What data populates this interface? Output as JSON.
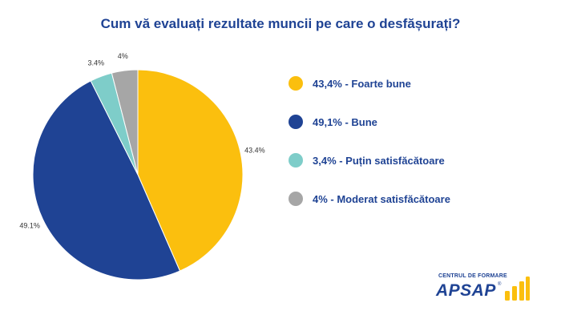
{
  "title": "Cum vă evaluați rezultate muncii pe care o desfășurați?",
  "chart_data": {
    "type": "pie",
    "slices": [
      {
        "label": "43.4%",
        "value": 43.4,
        "color": "#fbbf0e"
      },
      {
        "label": "49.1%",
        "value": 49.1,
        "color": "#1f4394"
      },
      {
        "label": "3.4%",
        "value": 3.4,
        "color": "#7ecdc9"
      },
      {
        "label": "4%",
        "value": 4.0,
        "color": "#a6a6a6"
      }
    ]
  },
  "legend": {
    "items": [
      {
        "text": "43,4% - Foarte bune",
        "color": "#fbbf0e"
      },
      {
        "text": "49,1% - Bune",
        "color": "#1f4394"
      },
      {
        "text": "3,4% - Puțin satisfăcătoare",
        "color": "#7ecdc9"
      },
      {
        "text": "4% - Moderat satisfăcătoare",
        "color": "#a6a6a6"
      }
    ]
  },
  "logo": {
    "small_text": "CENTRUL DE FORMARE",
    "big_text": "APSAP",
    "reg_mark": "®",
    "bar_color": "#fbbf0e"
  }
}
